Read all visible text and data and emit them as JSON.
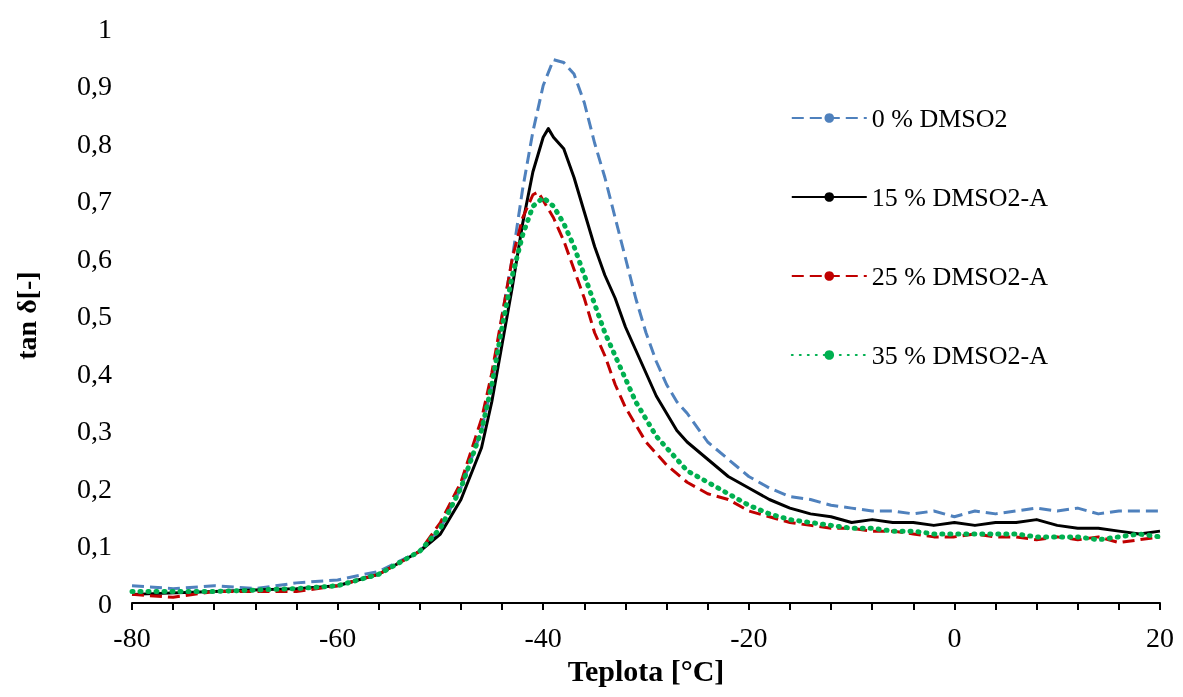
{
  "chart_data": {
    "type": "line",
    "xlabel": "Teplota [°C]",
    "ylabel": "tan δ[-]",
    "xlim": [
      -80,
      20
    ],
    "xticks": [
      -80,
      {
        "value": -76,
        "label": null
      },
      {
        "value": -72,
        "label": null
      },
      {
        "value": -68,
        "label": null
      },
      {
        "value": -64,
        "label": null
      },
      -60,
      {
        "value": -56,
        "label": null
      },
      {
        "value": -52,
        "label": null
      },
      {
        "value": -48,
        "label": null
      },
      {
        "value": -44,
        "label": null
      },
      -40,
      {
        "value": -36,
        "label": null
      },
      {
        "value": -32,
        "label": null
      },
      {
        "value": -28,
        "label": null
      },
      {
        "value": -24,
        "label": null
      },
      -20,
      {
        "value": -16,
        "label": null
      },
      {
        "value": -12,
        "label": null
      },
      {
        "value": -8,
        "label": null
      },
      {
        "value": -4,
        "label": null
      },
      0,
      {
        "value": 4,
        "label": null
      },
      {
        "value": 8,
        "label": null
      },
      {
        "value": 12,
        "label": null
      },
      {
        "value": 16,
        "label": null
      },
      20
    ],
    "ylim": [
      0,
      1
    ],
    "yticks": [
      0,
      {
        "value": 0.1,
        "label": "0,1"
      },
      {
        "value": 0.2,
        "label": "0,2"
      },
      {
        "value": 0.3,
        "label": "0,3"
      },
      {
        "value": 0.4,
        "label": "0,4"
      },
      {
        "value": 0.5,
        "label": "0,5"
      },
      {
        "value": 0.6,
        "label": "0,6"
      },
      {
        "value": 0.7,
        "label": "0,7"
      },
      {
        "value": 0.8,
        "label": "0,8"
      },
      {
        "value": 0.9,
        "label": "0,9"
      },
      1
    ],
    "grid": false,
    "legend": "top right",
    "marker": "none",
    "series": [
      {
        "name": "0 % DMSO2",
        "color": "#4f81bd",
        "line_style": "dashed",
        "x": [
          -80,
          -76,
          -72,
          -68,
          -64,
          -60,
          -56,
          -52,
          -50,
          -48,
          -46,
          -45,
          -44,
          -43,
          -42,
          -41,
          -40,
          -39,
          -38,
          -37,
          -36,
          -35,
          -34,
          -33,
          -32,
          -31,
          -30,
          -29,
          -28,
          -27,
          -26,
          -24,
          -22,
          -20,
          -18,
          -16,
          -14,
          -12,
          -10,
          -8,
          -6,
          -4,
          -2,
          0,
          2,
          4,
          6,
          8,
          10,
          12,
          14,
          16,
          18,
          20
        ],
        "values": [
          0.03,
          0.025,
          0.03,
          0.025,
          0.035,
          0.04,
          0.055,
          0.09,
          0.13,
          0.2,
          0.3,
          0.38,
          0.5,
          0.6,
          0.72,
          0.82,
          0.9,
          0.945,
          0.94,
          0.92,
          0.87,
          0.8,
          0.74,
          0.67,
          0.6,
          0.53,
          0.47,
          0.42,
          0.38,
          0.35,
          0.33,
          0.28,
          0.25,
          0.22,
          0.2,
          0.185,
          0.18,
          0.17,
          0.165,
          0.16,
          0.16,
          0.155,
          0.16,
          0.15,
          0.16,
          0.155,
          0.16,
          0.165,
          0.16,
          0.165,
          0.155,
          0.16,
          0.16,
          0.16
        ]
      },
      {
        "name": "15 % DMSO2-A",
        "color": "#000000",
        "line_style": "solid",
        "x": [
          -80,
          -72,
          -64,
          -60,
          -56,
          -52,
          -50,
          -48,
          -46,
          -45,
          -44,
          -43,
          -42,
          -41,
          -40,
          -39.5,
          -39,
          -38,
          -37,
          -36,
          -35,
          -34,
          -33,
          -32,
          -31,
          -30,
          -29,
          -28,
          -27,
          -26,
          -24,
          -22,
          -20,
          -18,
          -16,
          -14,
          -12,
          -10,
          -8,
          -6,
          -4,
          -2,
          0,
          2,
          4,
          6,
          8,
          10,
          12,
          14,
          16,
          18,
          20
        ],
        "values": [
          0.015,
          0.02,
          0.025,
          0.03,
          0.05,
          0.09,
          0.12,
          0.18,
          0.27,
          0.35,
          0.45,
          0.55,
          0.66,
          0.75,
          0.81,
          0.825,
          0.81,
          0.79,
          0.74,
          0.68,
          0.62,
          0.57,
          0.53,
          0.48,
          0.44,
          0.4,
          0.36,
          0.33,
          0.3,
          0.28,
          0.25,
          0.22,
          0.2,
          0.18,
          0.165,
          0.155,
          0.15,
          0.14,
          0.145,
          0.14,
          0.14,
          0.135,
          0.14,
          0.135,
          0.14,
          0.14,
          0.145,
          0.135,
          0.13,
          0.13,
          0.125,
          0.12,
          0.125
        ]
      },
      {
        "name": "25 % DMSO2-A",
        "color": "#c00000",
        "line_style": "dashed",
        "x": [
          -80,
          -76,
          -72,
          -64,
          -60,
          -56,
          -52,
          -50,
          -48,
          -46,
          -45,
          -44,
          -43,
          -42,
          -41,
          -40.5,
          -40,
          -39,
          -38,
          -37,
          -36,
          -35,
          -34,
          -33,
          -32,
          -31,
          -30,
          -29,
          -28,
          -26,
          -24,
          -22,
          -20,
          -18,
          -16,
          -14,
          -12,
          -10,
          -8,
          -6,
          -4,
          -2,
          0,
          2,
          4,
          6,
          8,
          10,
          12,
          14,
          16,
          18,
          20
        ],
        "values": [
          0.015,
          0.01,
          0.02,
          0.02,
          0.03,
          0.05,
          0.09,
          0.14,
          0.21,
          0.32,
          0.4,
          0.5,
          0.6,
          0.67,
          0.71,
          0.715,
          0.7,
          0.67,
          0.63,
          0.58,
          0.53,
          0.47,
          0.43,
          0.38,
          0.34,
          0.31,
          0.28,
          0.26,
          0.24,
          0.21,
          0.19,
          0.18,
          0.16,
          0.15,
          0.14,
          0.135,
          0.13,
          0.13,
          0.125,
          0.125,
          0.12,
          0.115,
          0.115,
          0.12,
          0.115,
          0.115,
          0.11,
          0.115,
          0.11,
          0.115,
          0.105,
          0.11,
          0.115
        ]
      },
      {
        "name": "35 % DMSO2-A",
        "color": "#00b050",
        "line_style": "dotted",
        "x": [
          -80,
          -72,
          -64,
          -60,
          -56,
          -52,
          -50,
          -48,
          -46,
          -45,
          -44,
          -43,
          -42,
          -41,
          -40,
          -39,
          -38,
          -37,
          -36,
          -35,
          -34,
          -33,
          -32,
          -31,
          -30,
          -29,
          -28,
          -26,
          -24,
          -22,
          -20,
          -18,
          -16,
          -14,
          -12,
          -10,
          -8,
          -6,
          -4,
          -2,
          0,
          2,
          4,
          6,
          8,
          10,
          12,
          14,
          16,
          18,
          20
        ],
        "values": [
          0.02,
          0.02,
          0.025,
          0.03,
          0.05,
          0.09,
          0.13,
          0.2,
          0.3,
          0.38,
          0.48,
          0.57,
          0.64,
          0.69,
          0.705,
          0.69,
          0.66,
          0.62,
          0.57,
          0.52,
          0.47,
          0.43,
          0.39,
          0.35,
          0.32,
          0.29,
          0.27,
          0.23,
          0.21,
          0.19,
          0.17,
          0.155,
          0.145,
          0.14,
          0.135,
          0.13,
          0.13,
          0.125,
          0.125,
          0.12,
          0.12,
          0.12,
          0.12,
          0.12,
          0.115,
          0.115,
          0.115,
          0.11,
          0.115,
          0.12,
          0.115
        ]
      }
    ]
  }
}
